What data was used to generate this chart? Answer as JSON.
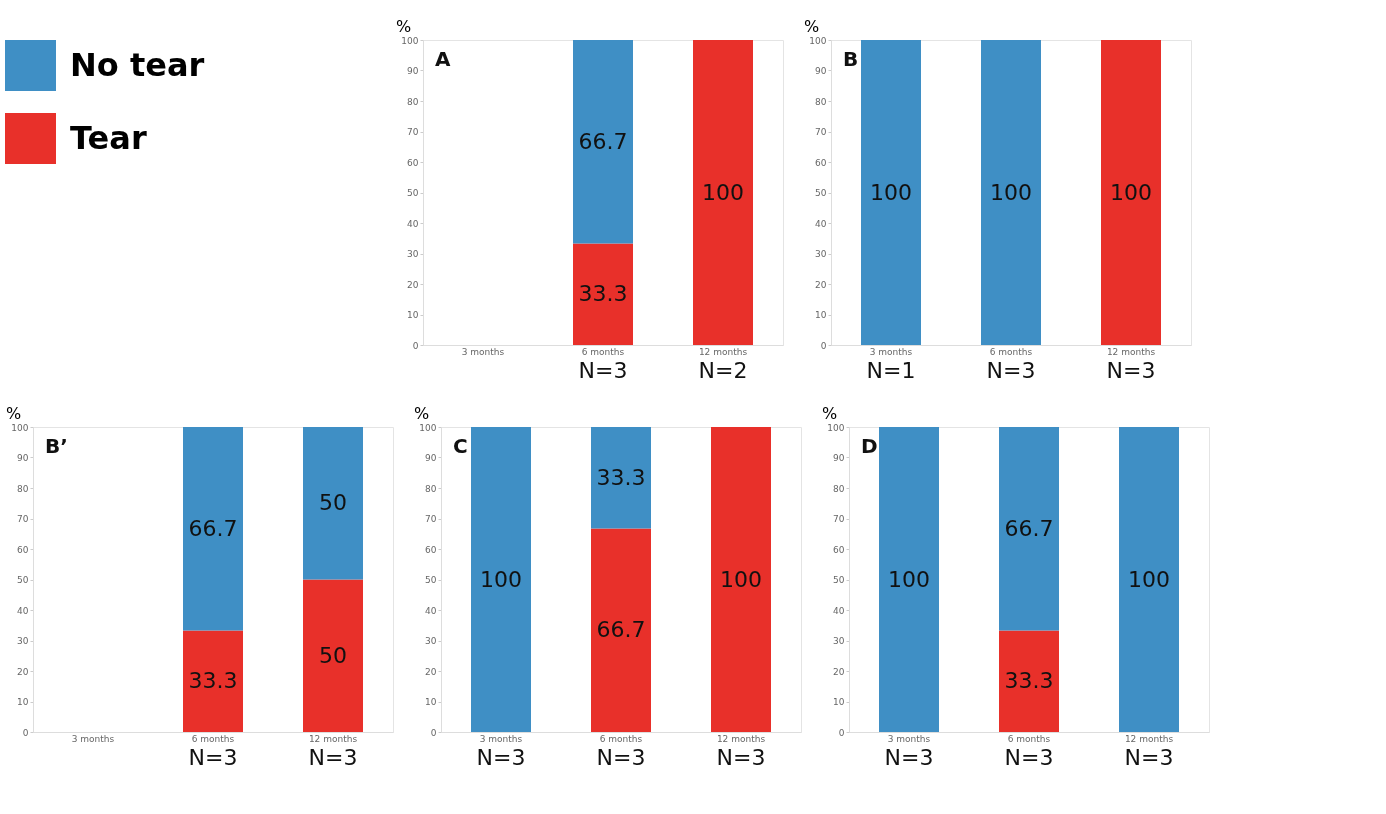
{
  "chart_data": [
    {
      "type": "bar",
      "title": "A",
      "ylabel": "%",
      "stacked": true,
      "data_labels": true,
      "legend": "top left",
      "categories": [
        "3 months",
        "6 months",
        "12 months"
      ],
      "ylim": [
        0,
        100
      ],
      "yticks": [
        0,
        10,
        20,
        30,
        40,
        50,
        60,
        70,
        80,
        90,
        100
      ],
      "series": [
        {
          "name": "Tear",
          "color": "#e8302a",
          "values": [
            null,
            33.3,
            100
          ]
        },
        {
          "name": "No tear",
          "color": "#3f8fc5",
          "values": [
            null,
            66.7,
            null
          ]
        }
      ],
      "annotations": [
        "N=3",
        "N=2"
      ]
    },
    {
      "type": "bar",
      "title": "B",
      "ylabel": "%",
      "stacked": true,
      "data_labels": true,
      "categories": [
        "3 months",
        "6 months",
        "12 months"
      ],
      "ylim": [
        0,
        100
      ],
      "yticks": [
        0,
        10,
        20,
        30,
        40,
        50,
        60,
        70,
        80,
        90,
        100
      ],
      "series": [
        {
          "color": "#e8302a",
          "values": [
            null,
            null,
            100
          ]
        },
        {
          "color": "#3f8fc5",
          "values": [
            100,
            100,
            null
          ]
        }
      ],
      "annotations": [
        "N=1",
        "N=3",
        "N=3"
      ]
    },
    {
      "type": "bar",
      "title": "B’",
      "ylabel": "%",
      "stacked": true,
      "data_labels": true,
      "categories": [
        "3 months",
        "6 months",
        "12 months"
      ],
      "ylim": [
        0,
        100
      ],
      "yticks": [
        0,
        10,
        20,
        30,
        40,
        50,
        60,
        70,
        80,
        90,
        100
      ],
      "series": [
        {
          "color": "#e8302a",
          "values": [
            null,
            33.3,
            50
          ]
        },
        {
          "color": "#3f8fc5",
          "values": [
            null,
            66.7,
            50
          ]
        }
      ],
      "annotations": [
        "N=3",
        "N=3"
      ]
    },
    {
      "type": "bar",
      "title": "C",
      "ylabel": "%",
      "stacked": true,
      "data_labels": true,
      "categories": [
        "3 months",
        "6 months",
        "12 months"
      ],
      "ylim": [
        0,
        100
      ],
      "yticks": [
        0,
        10,
        20,
        30,
        40,
        50,
        60,
        70,
        80,
        90,
        100
      ],
      "series": [
        {
          "color": "#e8302a",
          "values": [
            null,
            66.7,
            100
          ]
        },
        {
          "color": "#3f8fc5",
          "values": [
            100,
            33.3,
            null
          ]
        }
      ],
      "annotations": [
        "N=3",
        "N=3",
        "N=3"
      ]
    },
    {
      "type": "bar",
      "title": "D",
      "ylabel": "%",
      "stacked": true,
      "data_labels": true,
      "categories": [
        "3 months",
        "6 months",
        "12 months"
      ],
      "ylim": [
        0,
        100
      ],
      "yticks": [
        0,
        10,
        20,
        30,
        40,
        50,
        60,
        70,
        80,
        90,
        100
      ],
      "series": [
        {
          "color": "#e8302a",
          "values": [
            null,
            33.3,
            null
          ]
        },
        {
          "color": "#3f8fc5",
          "values": [
            100,
            66.7,
            100
          ]
        }
      ],
      "annotations": [
        "N=3",
        "N=3",
        "N=3"
      ]
    }
  ]
}
